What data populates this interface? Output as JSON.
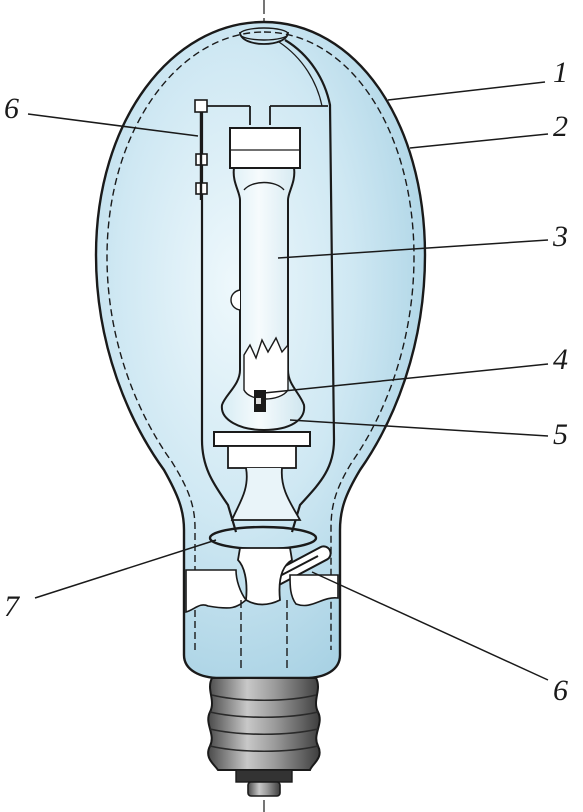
{
  "colors": {
    "outline": "#1a1a1a",
    "bulb_glass": "#bfe0ee",
    "bulb_glass_edge": "#a9d2e4",
    "bulb_highlight": "#eef8fc",
    "arc_tube": "#e6f3f8",
    "base_dark": "#555555",
    "base_light": "#bbbbbb",
    "background": "#ffffff"
  },
  "callouts": [
    {
      "id": "c1",
      "text": "1"
    },
    {
      "id": "c2",
      "text": "2"
    },
    {
      "id": "c3",
      "text": "3"
    },
    {
      "id": "c4",
      "text": "4"
    },
    {
      "id": "c5",
      "text": "5"
    },
    {
      "id": "c6a",
      "text": "6"
    },
    {
      "id": "c6b",
      "text": "6"
    },
    {
      "id": "c7",
      "text": "7"
    }
  ]
}
